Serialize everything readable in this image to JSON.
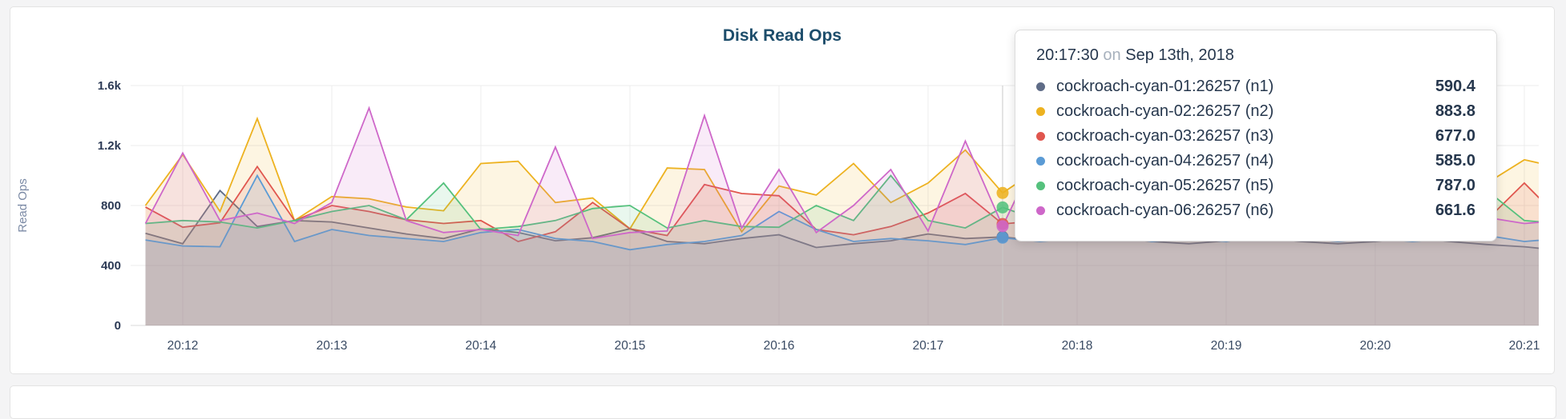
{
  "theme": {
    "page_bg": "#f4f4f5",
    "card_bg": "#ffffff",
    "card_border": "#e3e3e3",
    "title_color": "#1d4d6b",
    "ylabel_color": "#7b8aa5",
    "ytick_color": "#2c3a55",
    "xtick_color": "#394a63",
    "grid_color": "#ececec",
    "zero_line_color": "#d9d9d9",
    "hover_line_color": "#c9c9c9",
    "tooltip_border": "#dcdcdc",
    "tooltip_text_color": "#26374d",
    "tooltip_muted_color": "#a7b1bd"
  },
  "chart_data": {
    "type": "line",
    "title": "Disk Read Ops",
    "xlabel": "",
    "ylabel": "Read Ops",
    "ylim": [
      0,
      1600
    ],
    "grid": true,
    "legend_position": "tooltip",
    "x_unit": "seconds after 20:00 on Sep 13th, 2018",
    "y_ticks": [
      {
        "value": 0,
        "label": "0"
      },
      {
        "value": 400,
        "label": "400"
      },
      {
        "value": 800,
        "label": "800"
      },
      {
        "value": 1200,
        "label": "1.2k"
      },
      {
        "value": 1600,
        "label": "1.6k"
      }
    ],
    "x_ticks": [
      {
        "t": 720,
        "label": "20:12"
      },
      {
        "t": 780,
        "label": "20:13"
      },
      {
        "t": 840,
        "label": "20:14"
      },
      {
        "t": 900,
        "label": "20:15"
      },
      {
        "t": 960,
        "label": "20:16"
      },
      {
        "t": 1020,
        "label": "20:17"
      },
      {
        "t": 1080,
        "label": "20:18"
      },
      {
        "t": 1140,
        "label": "20:19"
      },
      {
        "t": 1200,
        "label": "20:20"
      },
      {
        "t": 1260,
        "label": "20:21"
      }
    ],
    "x": [
      705,
      720,
      735,
      750,
      765,
      780,
      795,
      810,
      825,
      840,
      855,
      870,
      885,
      900,
      915,
      930,
      945,
      960,
      975,
      990,
      1005,
      1020,
      1035,
      1050,
      1065,
      1080,
      1095,
      1110,
      1125,
      1140,
      1155,
      1170,
      1185,
      1200,
      1215,
      1230,
      1245,
      1260,
      1275
    ],
    "series": [
      {
        "name": "cockroach-cyan-01:26257 (n1)",
        "color": "#5F6C87",
        "values": [
          615,
          545,
          900,
          660,
          700,
          690,
          650,
          610,
          580,
          645,
          620,
          565,
          585,
          645,
          560,
          545,
          580,
          605,
          520,
          545,
          565,
          610,
          580,
          590.4,
          565,
          605,
          585,
          560,
          545,
          565,
          585,
          560,
          545,
          560,
          585,
          560,
          540,
          525,
          500
        ]
      },
      {
        "name": "cockroach-cyan-02:26257 (n2)",
        "color": "#EDB220",
        "values": [
          800,
          1140,
          760,
          1380,
          700,
          860,
          845,
          790,
          765,
          1080,
          1095,
          820,
          850,
          645,
          1050,
          1040,
          625,
          930,
          870,
          1080,
          820,
          950,
          1170,
          883.8,
          1050,
          1100,
          900,
          805,
          950,
          1000,
          855,
          900,
          950,
          1050,
          905,
          850,
          950,
          1105,
          1050
        ]
      },
      {
        "name": "cockroach-cyan-03:26257 (n3)",
        "color": "#E0564E",
        "values": [
          790,
          655,
          685,
          1060,
          700,
          800,
          760,
          705,
          680,
          700,
          560,
          625,
          820,
          645,
          600,
          940,
          880,
          865,
          640,
          605,
          660,
          750,
          880,
          677.0,
          700,
          655,
          680,
          700,
          650,
          700,
          680,
          660,
          700,
          655,
          700,
          680,
          705,
          950,
          700
        ]
      },
      {
        "name": "cockroach-cyan-04:26257 (n4)",
        "color": "#5B9BD5",
        "values": [
          570,
          530,
          525,
          1000,
          560,
          640,
          600,
          580,
          560,
          620,
          640,
          580,
          560,
          505,
          540,
          560,
          600,
          760,
          640,
          560,
          580,
          565,
          540,
          585.0,
          560,
          580,
          600,
          560,
          580,
          560,
          600,
          580,
          560,
          580,
          560,
          580,
          600,
          560,
          580
        ]
      },
      {
        "name": "cockroach-cyan-05:26257 (n5)",
        "color": "#55C17D",
        "values": [
          680,
          700,
          690,
          650,
          700,
          760,
          800,
          705,
          950,
          640,
          660,
          700,
          780,
          800,
          650,
          700,
          660,
          655,
          800,
          700,
          1000,
          700,
          650,
          787.0,
          700,
          720,
          700,
          680,
          700,
          720,
          700,
          680,
          700,
          720,
          700,
          685,
          900,
          700,
          680
        ]
      },
      {
        "name": "cockroach-cyan-06:26257 (n6)",
        "color": "#CE67C9",
        "values": [
          680,
          1150,
          700,
          750,
          680,
          820,
          1450,
          700,
          620,
          640,
          600,
          1190,
          580,
          620,
          630,
          1400,
          650,
          1040,
          620,
          800,
          1040,
          630,
          1230,
          661.6,
          1180,
          900,
          700,
          650,
          700,
          750,
          700,
          680,
          720,
          700,
          680,
          700,
          720,
          680,
          700
        ]
      }
    ]
  },
  "tooltip": {
    "time": "20:17:30",
    "on_word": "on",
    "date": "Sep 13th, 2018",
    "t": 1050,
    "rows": [
      {
        "label": "cockroach-cyan-01:26257 (n1)",
        "value": "590.4",
        "color": "#5F6C87"
      },
      {
        "label": "cockroach-cyan-02:26257 (n2)",
        "value": "883.8",
        "color": "#EDB220"
      },
      {
        "label": "cockroach-cyan-03:26257 (n3)",
        "value": "677.0",
        "color": "#E0564E"
      },
      {
        "label": "cockroach-cyan-04:26257 (n4)",
        "value": "585.0",
        "color": "#5B9BD5"
      },
      {
        "label": "cockroach-cyan-05:26257 (n5)",
        "value": "787.0",
        "color": "#55C17D"
      },
      {
        "label": "cockroach-cyan-06:26257 (n6)",
        "value": "661.6",
        "color": "#CE67C9"
      }
    ]
  }
}
